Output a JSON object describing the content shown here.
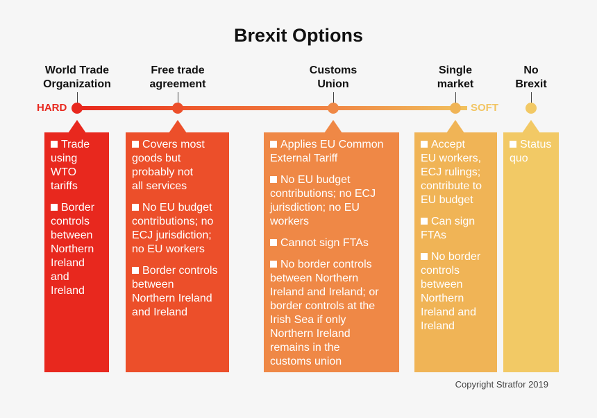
{
  "title": "Brexit Options",
  "scale": {
    "hard": "HARD",
    "soft": "SOFT"
  },
  "options": [
    {
      "label": "World Trade\nOrganization",
      "color": "#e8281e",
      "bullets": [
        "Trade\nusing\nWTO\ntariffs",
        "Border\ncontrols\nbetween\nNorthern\nIreland\nand\nIreland"
      ]
    },
    {
      "label": "Free trade\nagreement",
      "color": "#ec4f2a",
      "bullets": [
        "Covers most\ngoods but\nprobably not\nall services",
        "No EU budget\ncontributions; no\nECJ jurisdiction;\nno EU workers",
        "Border controls\nbetween\nNorthern Ireland\nand Ireland"
      ]
    },
    {
      "label": "Customs\nUnion",
      "color": "#ef8846",
      "bullets": [
        "Applies EU Common\nExternal Tariff",
        "No EU budget\ncontributions; no ECJ\njurisdiction; no EU\nworkers",
        "Cannot sign FTAs",
        "No border controls\nbetween Northern\nIreland and Ireland; or\nborder controls at the\nIrish Sea if only\nNorthern Ireland\nremains in the\ncustoms union"
      ]
    },
    {
      "label": "Single\nmarket",
      "color": "#f0b456",
      "bullets": [
        "Accept\nEU workers,\nECJ rulings;\ncontribute to\nEU budget",
        "Can sign\nFTAs",
        "No border\ncontrols\nbetween\nNorthern\nIreland and\nIreland"
      ]
    },
    {
      "label": "No\nBrexit",
      "color": "#f2c965",
      "bullets": [
        "Status\nquo"
      ]
    }
  ],
  "copyright": "Copyright Stratfor 2019"
}
